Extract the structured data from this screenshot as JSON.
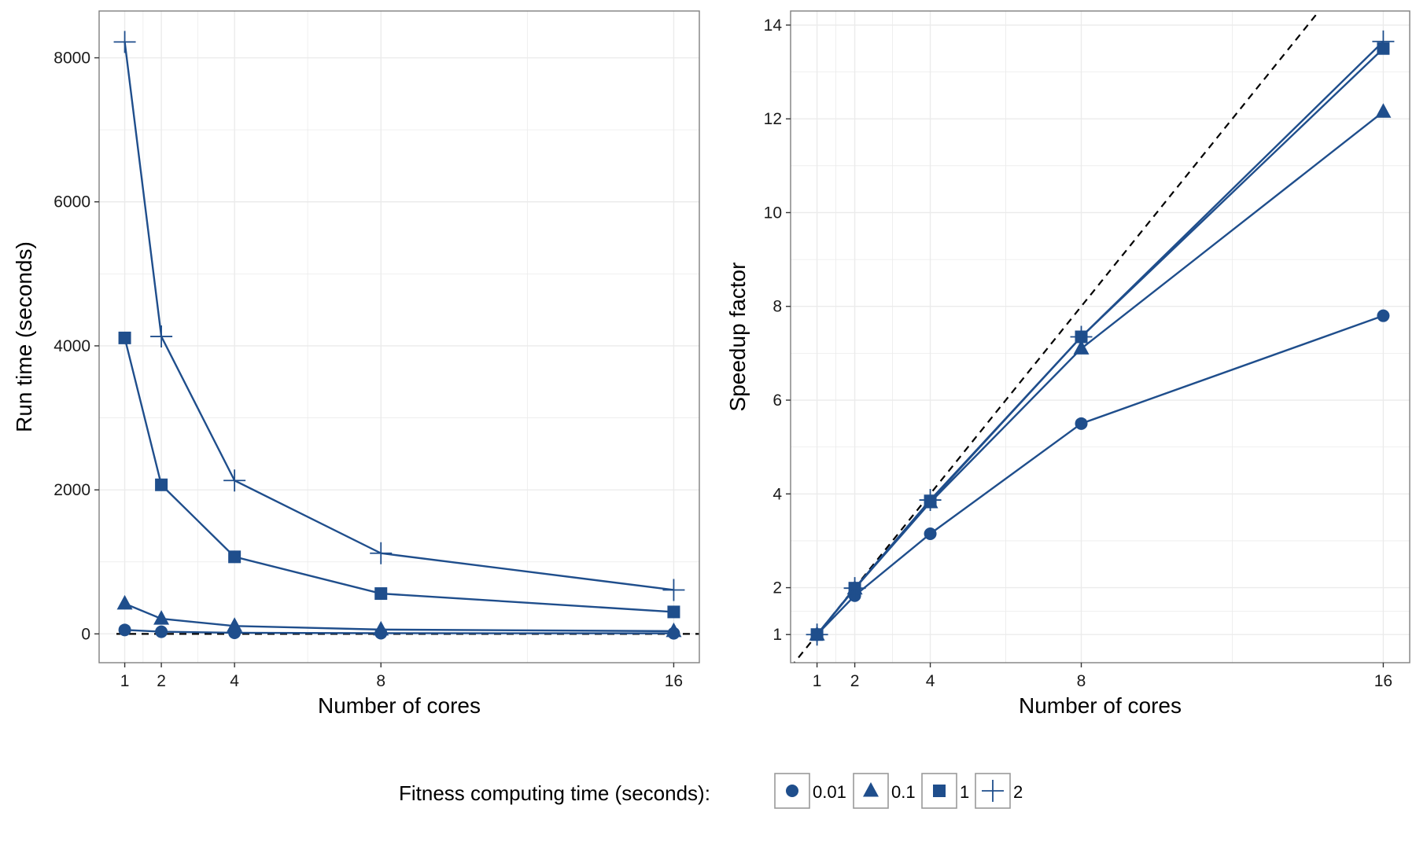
{
  "colors": {
    "series": "#1f4e8c",
    "reference_line": "#000000",
    "grid": "#ebebeb",
    "panel_border": "#7f7f7f"
  },
  "chart_data": [
    {
      "type": "line",
      "xlabel": "Number of cores",
      "ylabel": "Run time (seconds)",
      "x": [
        1,
        2,
        4,
        8,
        16
      ],
      "xticks": [
        "1",
        "2",
        "4",
        "8",
        "16"
      ],
      "yticks": [
        "0",
        "2000",
        "4000",
        "6000",
        "8000"
      ],
      "ytick_values": [
        0,
        2000,
        4000,
        6000,
        8000
      ],
      "xlim": [
        0.3,
        16.7
      ],
      "ylim": [
        -400,
        8650
      ],
      "grid": true,
      "series": [
        {
          "name": "0.01",
          "shape": "circle",
          "values": [
            55,
            30,
            15,
            10,
            8
          ]
        },
        {
          "name": "0.1",
          "shape": "triangle",
          "values": [
            420,
            210,
            110,
            60,
            38
          ]
        },
        {
          "name": "1",
          "shape": "square",
          "values": [
            4110,
            2070,
            1070,
            560,
            305
          ]
        },
        {
          "name": "2",
          "shape": "plus",
          "values": [
            8220,
            4130,
            2130,
            1120,
            610
          ]
        }
      ],
      "reference_line": {
        "style": "dashed",
        "y": 0
      }
    },
    {
      "type": "line",
      "xlabel": "Number of cores",
      "ylabel": "Speedup factor",
      "x": [
        1,
        2,
        4,
        8,
        16
      ],
      "xticks": [
        "1",
        "2",
        "4",
        "8",
        "16"
      ],
      "yticks": [
        "1",
        "2",
        "4",
        "6",
        "8",
        "10",
        "12",
        "14"
      ],
      "ytick_values": [
        1,
        2,
        4,
        6,
        8,
        10,
        12,
        14
      ],
      "xlim": [
        0.3,
        16.7
      ],
      "ylim": [
        0.4,
        14.3
      ],
      "grid": true,
      "series": [
        {
          "name": "0.01",
          "shape": "circle",
          "values": [
            1.0,
            1.83,
            3.15,
            5.5,
            7.8
          ]
        },
        {
          "name": "0.1",
          "shape": "triangle",
          "values": [
            1.0,
            1.98,
            3.82,
            7.1,
            12.15
          ]
        },
        {
          "name": "1",
          "shape": "square",
          "values": [
            1.0,
            1.99,
            3.85,
            7.35,
            13.5
          ]
        },
        {
          "name": "2",
          "shape": "plus",
          "values": [
            1.0,
            1.99,
            3.87,
            7.35,
            13.65
          ]
        }
      ],
      "reference_line": {
        "style": "dashed",
        "slope": 1,
        "intercept": 0
      }
    }
  ],
  "legend": {
    "title": "Fitness computing time (seconds):",
    "placement": "bottom",
    "items": [
      {
        "label": "0.01",
        "shape": "circle"
      },
      {
        "label": "0.1",
        "shape": "triangle"
      },
      {
        "label": "1",
        "shape": "square"
      },
      {
        "label": "2",
        "shape": "plus"
      }
    ]
  }
}
